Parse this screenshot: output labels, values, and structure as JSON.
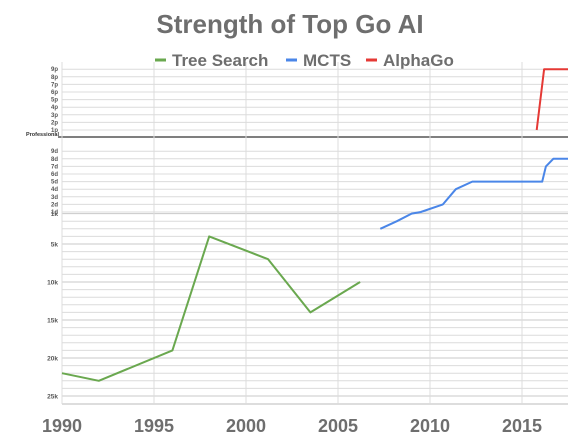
{
  "chart_data": {
    "type": "line",
    "title": "Strength of Top Go AI",
    "legend_position": "top",
    "x_range": [
      1990,
      2017.5
    ],
    "x_ticks": [
      "1990",
      "1995",
      "2000",
      "2005",
      "2010",
      "2015"
    ],
    "y_rank_order": [
      "25k",
      "20k",
      "15k",
      "10k",
      "5k",
      "1k",
      "1d",
      "2d",
      "3d",
      "4d",
      "5d",
      "6d",
      "7d",
      "8d",
      "9d",
      "Professional",
      "1p",
      "2p",
      "3p",
      "4p",
      "5p",
      "6p",
      "7p",
      "8p",
      "9p"
    ],
    "y_tick_labels": {
      "kyu": [
        "25k",
        "20k",
        "15k",
        "10k",
        "5k",
        "1k"
      ],
      "dan": [
        "1d",
        "2d",
        "3d",
        "4d",
        "5d",
        "6d",
        "7d",
        "8d",
        "9d"
      ],
      "professional_label": "Professional",
      "pro": [
        "1p",
        "2p",
        "3p",
        "4p",
        "5p",
        "6p",
        "7p",
        "8p",
        "9p"
      ]
    },
    "series": [
      {
        "name": "Tree Search",
        "color": "#6aa84f",
        "points": [
          {
            "x": 1990,
            "y": "22k"
          },
          {
            "x": 1992,
            "y": "23k"
          },
          {
            "x": 1996,
            "y": "19k"
          },
          {
            "x": 1998,
            "y": "4k"
          },
          {
            "x": 2001.2,
            "y": "7k"
          },
          {
            "x": 2003.5,
            "y": "14k"
          },
          {
            "x": 2006.2,
            "y": "10k"
          }
        ]
      },
      {
        "name": "MCTS",
        "color": "#4a86e8",
        "points": [
          {
            "x": 2007.3,
            "y": "3k"
          },
          {
            "x": 2008.2,
            "y": "2k"
          },
          {
            "x": 2009,
            "y": "1k"
          },
          {
            "x": 2009.5,
            "y": "1d"
          },
          {
            "x": 2010.7,
            "y": "2d"
          },
          {
            "x": 2011.4,
            "y": "4d"
          },
          {
            "x": 2012.3,
            "y": "5d"
          },
          {
            "x": 2016.1,
            "y": "5d"
          },
          {
            "x": 2016.3,
            "y": "7d"
          },
          {
            "x": 2016.7,
            "y": "8d"
          },
          {
            "x": 2017.5,
            "y": "8d"
          }
        ]
      },
      {
        "name": "AlphaGo",
        "color": "#e53935",
        "points": [
          {
            "x": 2015.8,
            "y": "1p"
          },
          {
            "x": 2016.2,
            "y": "9p"
          },
          {
            "x": 2017.5,
            "y": "9p"
          }
        ]
      }
    ]
  }
}
